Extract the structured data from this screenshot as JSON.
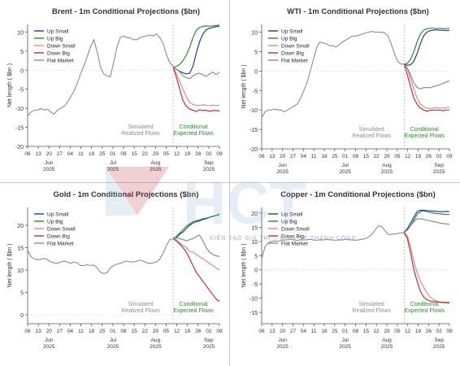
{
  "watermark": {
    "logo": "HCT",
    "tagline": "KIẾN TẠO GIÁ TRỊ – CHIA SẺ THÀNH CÔNG"
  },
  "colors": {
    "up_small": "#1f3f9f",
    "up_big": "#2e8b2e",
    "down_small": "#e08a8a",
    "down_big": "#c0303a",
    "flat": "#8c8c8c",
    "realized": "#8c8c8c",
    "cond_text": "#2e8b2e"
  },
  "x_ticks": [
    {
      "d": "06",
      "m": ""
    },
    {
      "d": "13",
      "m": ""
    },
    {
      "d": "20",
      "m": "Jun\n2025"
    },
    {
      "d": "27",
      "m": ""
    },
    {
      "d": "04",
      "m": ""
    },
    {
      "d": "11",
      "m": ""
    },
    {
      "d": "18",
      "m": ""
    },
    {
      "d": "25",
      "m": ""
    },
    {
      "d": "01",
      "m": "Jul\n2025"
    },
    {
      "d": "08",
      "m": ""
    },
    {
      "d": "15",
      "m": ""
    },
    {
      "d": "22",
      "m": ""
    },
    {
      "d": "29",
      "m": "Aug\n2025"
    },
    {
      "d": "05",
      "m": ""
    },
    {
      "d": "12",
      "m": ""
    },
    {
      "d": "19",
      "m": ""
    },
    {
      "d": "26",
      "m": ""
    },
    {
      "d": "02",
      "m": "Sep\n2025"
    },
    {
      "d": "09",
      "m": ""
    }
  ],
  "chart_data": [
    {
      "type": "line",
      "title": "Brent - 1m Conditional Projections ($bn)",
      "ylabel": "Net length ( $bn )",
      "ylim": [
        -20,
        12
      ],
      "yticks": [
        10,
        5,
        0,
        -5,
        -10,
        -15,
        -20
      ],
      "annotation_realized": [
        "Simulated",
        "Realized Flows"
      ],
      "annotation_conditional": [
        "Conditional",
        "Expected Flows"
      ],
      "legend": [
        "Up Small",
        "Up Big",
        "Down Small",
        "Down Big",
        "Flat Market"
      ],
      "realized": [
        -12,
        -11,
        -10.5,
        -10.5,
        -10,
        -10.5,
        -10.2,
        -11,
        -11.5,
        -10.5,
        -10,
        -9.5,
        -8.5,
        -7,
        -5.5,
        -3.5,
        -1,
        1,
        3.5,
        6,
        8,
        5,
        1,
        -1,
        -1.5,
        -1.8,
        2,
        6,
        8.5,
        9,
        8.5,
        8.5,
        8,
        8,
        8.5,
        8.8,
        9,
        9.2,
        9,
        9.5,
        8.5,
        7,
        4,
        2,
        1
      ],
      "series": [
        {
          "name": "Up Small",
          "values": [
            0.8,
            0.2,
            -0.3,
            -0.7,
            -1.0,
            -0.8,
            1.0,
            4.5,
            7.5,
            9.5,
            10.6,
            11.0,
            11.2,
            11.4,
            11.5
          ]
        },
        {
          "name": "Up Big",
          "values": [
            0.8,
            1.0,
            1.5,
            2.5,
            4.0,
            6.0,
            8.5,
            10.5,
            11.2,
            11.5,
            11.6,
            11.5,
            11.6,
            11.7,
            11.8
          ]
        },
        {
          "name": "Down Small",
          "values": [
            0.8,
            -1.0,
            -3.0,
            -5.0,
            -7.0,
            -8.5,
            -9.0,
            -9.2,
            -9.3,
            -9.1,
            -9.2,
            -9.3,
            -9.2,
            -9.3,
            -9.2
          ]
        },
        {
          "name": "Down Big",
          "values": [
            0.8,
            -2.0,
            -5.0,
            -8.0,
            -9.5,
            -10.2,
            -10.5,
            -10.8,
            -10.4,
            -10.6,
            -10.5,
            -10.8,
            -10.6,
            -10.6,
            -10.7
          ]
        },
        {
          "name": "Flat Market",
          "values": [
            0.8,
            0.3,
            -0.5,
            -1.5,
            -2.0,
            -2.2,
            -1.5,
            -1.0,
            -0.8,
            -1.2,
            -1.6,
            -1.0,
            -0.5,
            -1.2,
            -0.5
          ]
        }
      ]
    },
    {
      "type": "line",
      "title": "WTI - 1m Conditional Projections ($bn)",
      "ylabel": "Net length ( $bn )",
      "ylim": [
        -20,
        12
      ],
      "yticks": [
        10,
        5,
        0,
        -5,
        -10,
        -15,
        -20
      ],
      "annotation_realized": [
        "Simulated",
        "Realized Flows"
      ],
      "annotation_conditional": [
        "Conditional",
        "Expected Flows"
      ],
      "legend": [
        "Up Small",
        "Up Big",
        "Down Small",
        "Down Big",
        "Flat Market"
      ],
      "realized": [
        -12,
        -10.5,
        -10,
        -10,
        -9.8,
        -10,
        -10,
        -10.5,
        -10,
        -9.5,
        -9,
        -8.5,
        -7,
        -5,
        -3,
        0,
        3,
        6,
        7.5,
        7.2,
        7.0,
        6.5,
        6.5,
        6.2,
        6.8,
        7.5,
        8,
        8.5,
        9,
        9,
        9.2,
        9.5,
        9.8,
        10,
        10.2,
        10,
        10,
        10,
        9.8,
        9,
        7,
        4.5,
        2.5,
        1.8,
        1.8
      ],
      "series": [
        {
          "name": "Up Small",
          "values": [
            1.8,
            1.5,
            1.6,
            2.5,
            4.5,
            7.0,
            9.0,
            10.0,
            10.4,
            10.5,
            10.6,
            10.5,
            10.5,
            10.4,
            10.5
          ]
        },
        {
          "name": "Up Big",
          "values": [
            1.8,
            2.0,
            3.0,
            5.0,
            7.5,
            9.5,
            10.5,
            10.9,
            11.0,
            11.0,
            10.9,
            11.0,
            10.9,
            10.9,
            11.0
          ]
        },
        {
          "name": "Down Small",
          "values": [
            1.8,
            0.5,
            -2.0,
            -4.5,
            -7.0,
            -8.5,
            -9.2,
            -9.5,
            -9.6,
            -9.5,
            -9.4,
            -9.5,
            -9.5,
            -9.4,
            -9.3
          ]
        },
        {
          "name": "Down Big",
          "values": [
            1.8,
            -1.0,
            -4.0,
            -7.0,
            -8.5,
            -9.5,
            -10.0,
            -10.3,
            -10.1,
            -10.0,
            -10.1,
            -10.0,
            -10.2,
            -10.0,
            -10.0
          ]
        },
        {
          "name": "Flat Market",
          "values": [
            1.8,
            0.8,
            -1.0,
            -3.0,
            -4.2,
            -4.6,
            -4.3,
            -4.2,
            -4.3,
            -4.0,
            -3.8,
            -3.5,
            -3.2,
            -2.8,
            -2.5
          ]
        }
      ]
    },
    {
      "type": "line",
      "title": "Gold - 1m Conditional Projections ($bn)",
      "ylabel": "Net length ( $bn )",
      "ylim": [
        -2,
        24
      ],
      "yticks": [
        20,
        15,
        10,
        5,
        0
      ],
      "annotation_realized": [
        "Simulated",
        "Realized Flows"
      ],
      "annotation_conditional": [
        "Conditional",
        "Expected Flows"
      ],
      "legend": [
        "Up Small",
        "Up Big",
        "Down Small",
        "Down Big",
        "Flat Market"
      ],
      "realized": [
        14.5,
        13,
        12.5,
        12.3,
        12.4,
        12.6,
        12.3,
        11.8,
        11.6,
        11.5,
        11.8,
        12.0,
        11.8,
        11.5,
        11.8,
        11.6,
        11.0,
        11.0,
        11.2,
        11.0,
        11.1,
        10.5,
        9.5,
        9.2,
        9.4,
        10.5,
        11.0,
        11.3,
        11.5,
        11.8,
        12.0,
        11.8,
        11.8,
        12.0,
        12.2,
        12.0,
        11.6,
        11.5,
        11.6,
        11.8,
        12.5,
        13.8,
        15.5,
        16.8,
        17.0
      ],
      "series": [
        {
          "name": "Up Small",
          "values": [
            17.0,
            17.3,
            18.0,
            18.5,
            19.3,
            20.0,
            20.5,
            20.8,
            21.0,
            21.3,
            21.5,
            21.8,
            22.0,
            22.2,
            22.5
          ]
        },
        {
          "name": "Up Big",
          "values": [
            17.0,
            17.5,
            18.3,
            19.0,
            19.8,
            20.3,
            20.8,
            21.0,
            21.2,
            21.5,
            21.6,
            21.8,
            22.0,
            22.2,
            22.4
          ]
        },
        {
          "name": "Down Small",
          "values": [
            17.0,
            16.8,
            16.0,
            15.5,
            15.0,
            14.2,
            14.0,
            13.5,
            13.0,
            12.5,
            12.0,
            11.5,
            11.0,
            10.5,
            10.0
          ]
        },
        {
          "name": "Down Big",
          "values": [
            17.0,
            16.5,
            15.8,
            15.0,
            14.0,
            12.5,
            11.0,
            9.5,
            8.5,
            7.5,
            6.5,
            5.5,
            4.5,
            3.5,
            3.0
          ]
        },
        {
          "name": "Flat Market",
          "values": [
            17.0,
            17.2,
            17.0,
            16.8,
            16.5,
            16.8,
            17.0,
            17.5,
            17.8,
            16.5,
            15.0,
            14.0,
            13.5,
            13.2,
            13.0
          ]
        }
      ]
    },
    {
      "type": "line",
      "title": "Copper - 1m Conditional Projections ($bn)",
      "ylabel": "Net length ( $bn )",
      "ylim": [
        -19,
        22
      ],
      "yticks": [
        20,
        15,
        10,
        5,
        0,
        -5,
        -10,
        -15
      ],
      "annotation_realized": [
        "Simulated",
        "Realized Flows"
      ],
      "annotation_conditional": [
        "Conditional",
        "Expected Flows"
      ],
      "legend": [
        "Up Small",
        "Up Big",
        "Down Small",
        "Down Big",
        "Flat Market"
      ],
      "realized": [
        4,
        8,
        9.5,
        10,
        10.2,
        10.1,
        10.3,
        10.5,
        10.6,
        10.8,
        10.5,
        10.4,
        10.6,
        10.5,
        10.6,
        10.8,
        10.5,
        10.4,
        10.6,
        10.5,
        10.7,
        10.6,
        10.5,
        10.4,
        10.6,
        10.5,
        10.8,
        10.6,
        10.5,
        10.4,
        10.6,
        10.8,
        11,
        11.5,
        12.5,
        14,
        15.5,
        15.3,
        14,
        12.5,
        12.5,
        12.6,
        12.8,
        13,
        13.2
      ],
      "series": [
        {
          "name": "Up Small",
          "values": [
            13.2,
            14.5,
            16.5,
            18.5,
            20.5,
            21.0,
            21.0,
            20.9,
            20.8,
            20.7,
            20.6,
            20.5,
            20.5,
            20.6,
            20.5
          ]
        },
        {
          "name": "Up Big",
          "values": [
            13.2,
            14.0,
            15.5,
            17.5,
            19.5,
            20.5,
            20.8,
            20.5,
            20.3,
            20.0,
            19.8,
            19.8,
            19.6,
            19.5,
            19.5
          ]
        },
        {
          "name": "Down Small",
          "values": [
            13.2,
            12.0,
            8.0,
            3.0,
            -1.0,
            -4.0,
            -6.0,
            -8.0,
            -9.5,
            -10.5,
            -11.0,
            -11.5,
            -11.6,
            -11.7,
            -11.8
          ]
        },
        {
          "name": "Down Big",
          "values": [
            13.2,
            11.0,
            6.0,
            0.0,
            -4.0,
            -7.5,
            -9.5,
            -10.5,
            -11.0,
            -11.2,
            -11.3,
            -11.4,
            -11.4,
            -11.5,
            -11.5
          ]
        },
        {
          "name": "Flat Market",
          "values": [
            13.2,
            14.0,
            15.5,
            17.0,
            18.0,
            18.0,
            17.8,
            17.5,
            17.3,
            17.0,
            16.8,
            16.5,
            16.3,
            16.2,
            16.0
          ]
        }
      ]
    }
  ]
}
